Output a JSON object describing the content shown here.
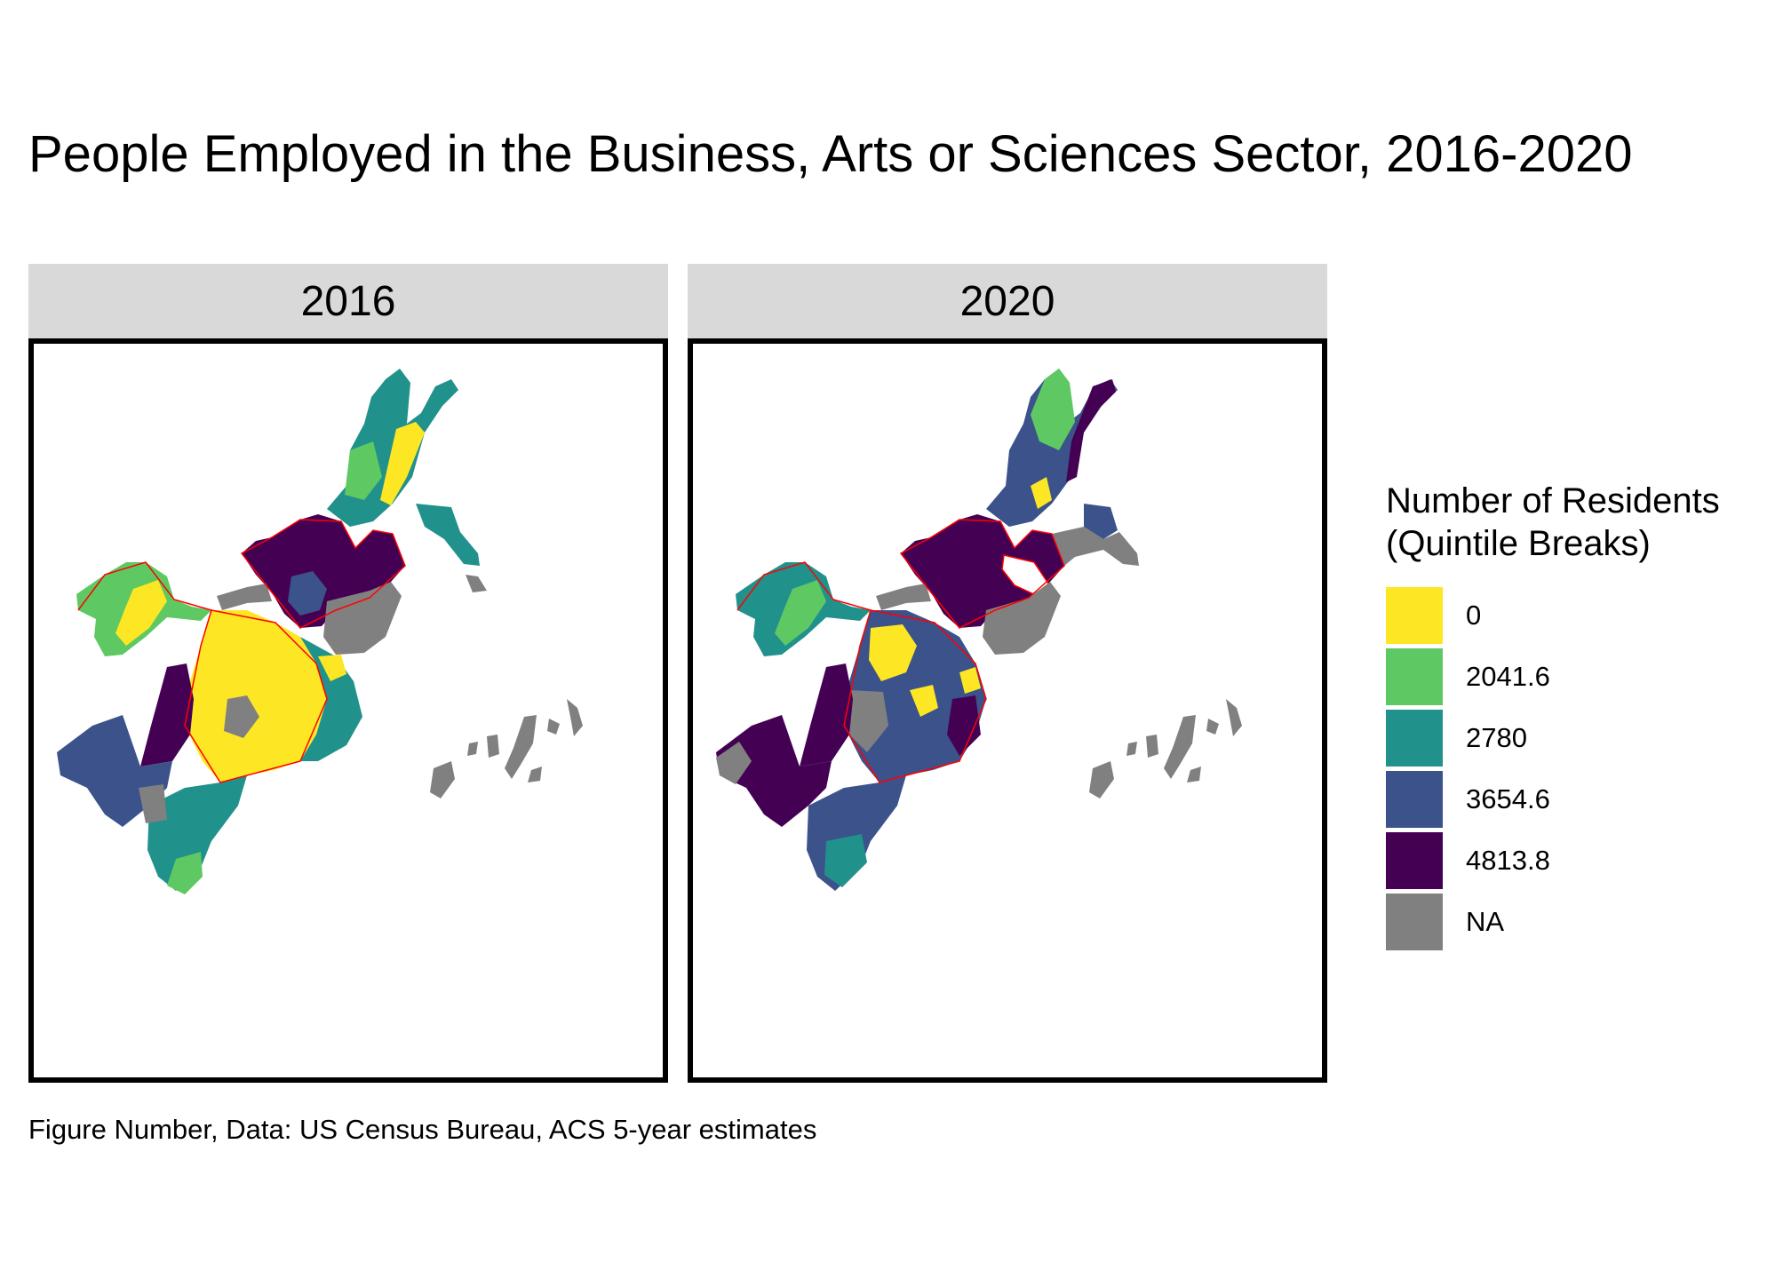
{
  "title": "People Employed in the Business, Arts or Sciences Sector, 2016-2020",
  "caption": "Figure Number, Data: US Census Bureau, ACS 5-year estimates",
  "panels": [
    {
      "label": "2016"
    },
    {
      "label": "2020"
    }
  ],
  "legend": {
    "title_line1": "Number of Residents",
    "title_line2": "(Quintile Breaks)",
    "items": [
      {
        "label": "0",
        "color": "#fde725"
      },
      {
        "label": "2041.6",
        "color": "#5ec962"
      },
      {
        "label": "2780",
        "color": "#21918c"
      },
      {
        "label": "3654.6",
        "color": "#3b528b"
      },
      {
        "label": "4813.8",
        "color": "#440154"
      },
      {
        "label": "NA",
        "color": "#808080"
      }
    ]
  },
  "colors": {
    "boundary": "#ff0000",
    "na": "#808080",
    "facet_strip": "#d9d9d9"
  }
}
